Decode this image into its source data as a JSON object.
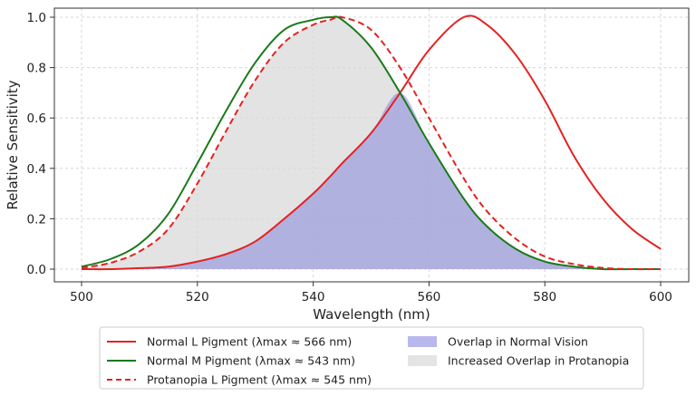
{
  "chart_data": {
    "type": "line",
    "title": "",
    "xlabel": "Wavelength (nm)",
    "ylabel": "Relative Sensitivity",
    "xlim": [
      500,
      600
    ],
    "ylim": [
      0.0,
      1.0
    ],
    "x_ticks": [
      "500",
      "520",
      "540",
      "560",
      "580",
      "600"
    ],
    "y_ticks": [
      "0.0",
      "0.2",
      "0.4",
      "0.6",
      "0.8",
      "1.0"
    ],
    "grid": true,
    "legend_position": "bottom",
    "x": [
      500,
      505,
      510,
      515,
      520,
      525,
      530,
      535,
      540,
      543,
      545,
      550,
      555,
      560,
      566,
      570,
      575,
      580,
      585,
      590,
      595,
      600
    ],
    "series": [
      {
        "name": "Normal L Pigment (λmax ≈ 566 nm)",
        "color": "#e32222",
        "dash": "solid",
        "values": [
          0.0,
          0.0,
          0.004,
          0.01,
          0.03,
          0.06,
          0.11,
          0.2,
          0.3,
          0.37,
          0.42,
          0.54,
          0.7,
          0.87,
          1.0,
          0.97,
          0.85,
          0.67,
          0.45,
          0.28,
          0.16,
          0.08
        ]
      },
      {
        "name": "Normal M Pigment (λmax ≈ 543 nm)",
        "color": "#1a7a1a",
        "dash": "solid",
        "values": [
          0.01,
          0.04,
          0.1,
          0.22,
          0.42,
          0.63,
          0.82,
          0.95,
          0.99,
          1.0,
          0.99,
          0.88,
          0.7,
          0.5,
          0.28,
          0.17,
          0.08,
          0.03,
          0.01,
          0.0,
          0.0,
          0.0
        ]
      },
      {
        "name": "Protanopia L Pigment (λmax ≈ 545 nm)",
        "color": "#e32222",
        "dash": "dashed",
        "values": [
          0.005,
          0.025,
          0.07,
          0.16,
          0.34,
          0.55,
          0.75,
          0.9,
          0.97,
          0.99,
          1.0,
          0.95,
          0.8,
          0.6,
          0.36,
          0.23,
          0.12,
          0.05,
          0.02,
          0.005,
          0.0,
          0.0
        ]
      }
    ],
    "fills": [
      {
        "name": "Increased Overlap in Protanopia",
        "color": "#d9d9d9",
        "between": [
          "Normal M Pigment (λmax ≈ 543 nm)",
          "Protanopia L Pigment (λmax ≈ 545 nm)"
        ],
        "mode": "min-of-two"
      },
      {
        "name": "Overlap in Normal Vision",
        "color": "#8f8fdc",
        "between": [
          "Normal L Pigment (λmax ≈ 566 nm)",
          "Normal M Pigment (λmax ≈ 543 nm)"
        ],
        "mode": "min-of-two"
      }
    ],
    "legend": [
      {
        "label": "Normal L Pigment (λmax ≈ 566 nm)",
        "kind": "line",
        "color": "#e32222",
        "dash": "solid"
      },
      {
        "label": "Normal M Pigment (λmax ≈ 543 nm)",
        "kind": "line",
        "color": "#1a7a1a",
        "dash": "solid"
      },
      {
        "label": "Protanopia L Pigment (λmax ≈ 545 nm)",
        "kind": "line",
        "color": "#e32222",
        "dash": "dashed"
      },
      {
        "label": "Overlap in Normal Vision",
        "kind": "patch",
        "color": "#b8b8ec"
      },
      {
        "label": "Increased Overlap in Protanopia",
        "kind": "patch",
        "color": "#e4e4e4"
      }
    ]
  }
}
